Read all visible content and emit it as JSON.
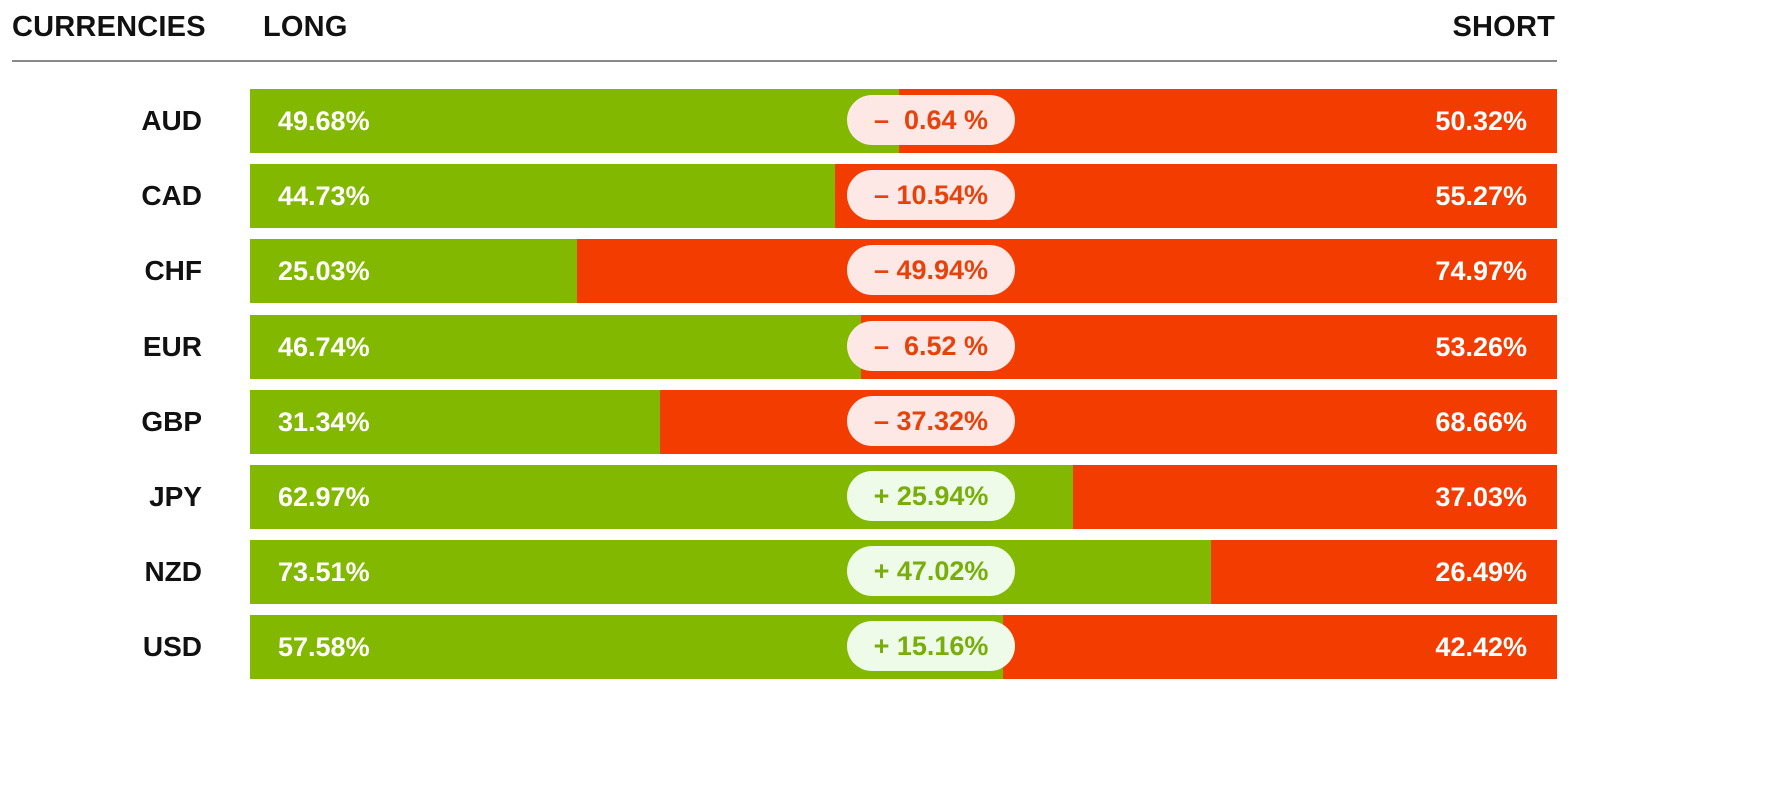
{
  "header": {
    "currencies_label": "CURRENCIES",
    "long_label": "LONG",
    "short_label": "SHORT"
  },
  "colors": {
    "long": "#82b800",
    "short": "#f23c00",
    "negative_badge_bg": "#fde8e6",
    "negative_badge_text": "#e8420c",
    "positive_badge_bg": "#edfbe8",
    "positive_badge_text": "#78ad0a"
  },
  "chart_data": {
    "type": "bar",
    "stacked": true,
    "orientation": "horizontal",
    "categories": [
      "AUD",
      "CAD",
      "CHF",
      "EUR",
      "GBP",
      "JPY",
      "NZD",
      "USD"
    ],
    "series": [
      {
        "name": "LONG",
        "values": [
          49.68,
          44.73,
          25.03,
          46.74,
          31.34,
          62.97,
          73.51,
          57.58
        ],
        "labels": [
          "49.68%",
          "44.73%",
          "25.03%",
          "46.74%",
          "31.34%",
          "62.97%",
          "73.51%",
          "57.58%"
        ]
      },
      {
        "name": "SHORT",
        "values": [
          50.32,
          55.27,
          74.97,
          53.26,
          68.66,
          37.03,
          26.49,
          42.42
        ],
        "labels": [
          "50.32%",
          "55.27%",
          "74.97%",
          "53.26%",
          "68.66%",
          "37.03%",
          "26.49%",
          "42.42%"
        ]
      }
    ],
    "net": {
      "values": [
        -0.64,
        -10.54,
        -49.94,
        -6.52,
        -37.32,
        25.94,
        47.02,
        15.16
      ],
      "labels": [
        "–  0.64 %",
        "– 10.54%",
        "– 49.94%",
        "–  6.52 %",
        "– 37.32%",
        "+ 25.94%",
        "+ 47.02%",
        "+ 15.16%"
      ]
    },
    "xlim": [
      0,
      100
    ]
  }
}
